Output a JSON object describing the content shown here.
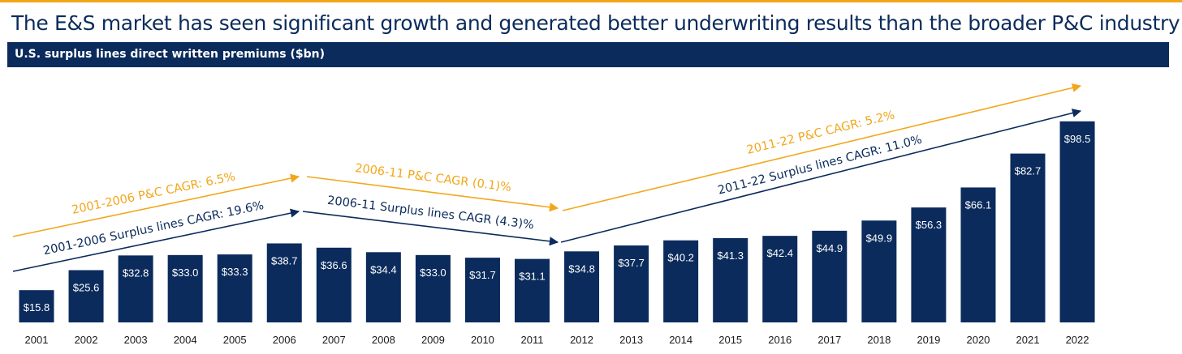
{
  "title": "The E&S market has seen significant growth and generated better underwriting results than the broader P&C industry",
  "colors": {
    "navy": "#0B2B5C",
    "orange": "#F2A71B",
    "text_dark": "#1a1a1a"
  },
  "chart_data": {
    "type": "bar",
    "title": "U.S. surplus lines direct written premiums ($bn)",
    "categories": [
      "2001",
      "2002",
      "2003",
      "2004",
      "2005",
      "2006",
      "2007",
      "2008",
      "2009",
      "2010",
      "2011",
      "2012",
      "2013",
      "2014",
      "2015",
      "2016",
      "2017",
      "2018",
      "2019",
      "2020",
      "2021",
      "2022"
    ],
    "values": [
      15.8,
      25.6,
      32.8,
      33.0,
      33.3,
      38.7,
      36.6,
      34.4,
      33.0,
      31.7,
      31.1,
      34.8,
      37.7,
      40.2,
      41.3,
      42.4,
      44.9,
      49.9,
      56.3,
      66.1,
      82.7,
      98.5
    ],
    "data_labels": [
      "$15.8",
      "$25.6",
      "$32.8",
      "$33.0",
      "$33.3",
      "$38.7",
      "$36.6",
      "$34.4",
      "$33.0",
      "$31.7",
      "$31.1",
      "$34.8",
      "$37.7",
      "$40.2",
      "$41.3",
      "$42.4",
      "$44.9",
      "$49.9",
      "$56.3",
      "$66.1",
      "$82.7",
      "$98.5"
    ],
    "ylim": [
      0,
      100
    ],
    "grid": false,
    "xlabel": "",
    "ylabel": "",
    "annotations": [
      {
        "text": "2001-2006 P&C CAGR: 6.5%",
        "color": "orange",
        "from": "2001",
        "to": "2006"
      },
      {
        "text": "2001-2006 Surplus lines CAGR: 19.6%",
        "color": "navy",
        "from": "2001",
        "to": "2006"
      },
      {
        "text": "2006-11 P&C CAGR (0.1)%",
        "color": "orange",
        "from": "2006",
        "to": "2011"
      },
      {
        "text": "2006-11 Surplus lines CAGR (4.3)%",
        "color": "navy",
        "from": "2006",
        "to": "2011"
      },
      {
        "text": "2011-22 P&C CAGR: 5.2%",
        "color": "orange",
        "from": "2011",
        "to": "2022"
      },
      {
        "text": "2011-22 Surplus lines CAGR: 11.0%",
        "color": "navy",
        "from": "2011",
        "to": "2022"
      }
    ]
  }
}
